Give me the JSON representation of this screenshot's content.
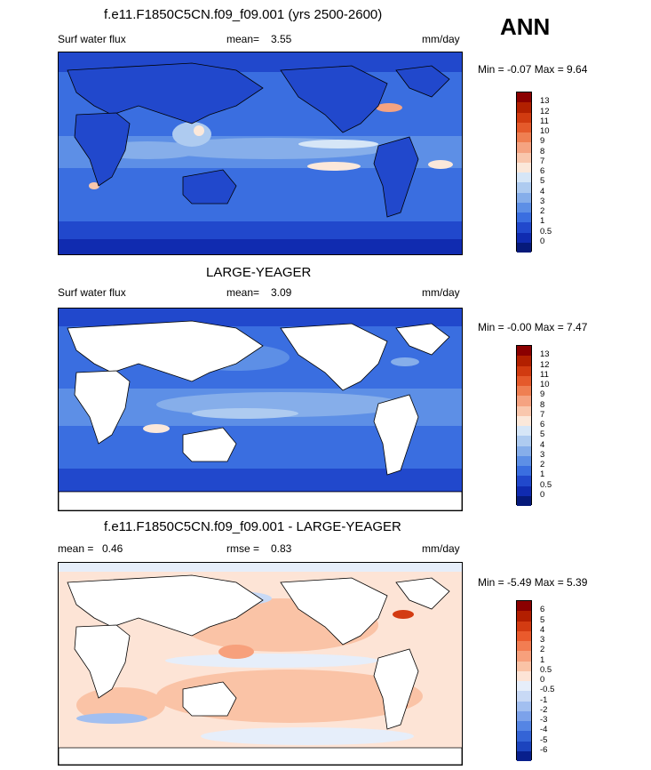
{
  "season": "ANN",
  "panels": [
    {
      "title": "f.e11.F1850C5CN.f09_f09.001 (yrs 2500-2600)",
      "left_label": "Surf water flux",
      "stat_label": "mean=",
      "stat_value": "3.55",
      "units": "mm/day",
      "minmax": "Min = -0.07 Max = 9.64",
      "levels": [
        "13",
        "12",
        "11",
        "10",
        "9",
        "8",
        "7",
        "6",
        "5",
        "4",
        "3",
        "2",
        "1",
        "0.5",
        "0"
      ],
      "colors": [
        "#8b0000",
        "#b22000",
        "#d13b10",
        "#e55a2b",
        "#ef7f52",
        "#f5a381",
        "#f9c7ad",
        "#fbe8da",
        "#d6e6f7",
        "#aecbf0",
        "#86aeea",
        "#5d8fe6",
        "#3a6ee0",
        "#2148cc",
        "#102bb0",
        "#061a7a"
      ]
    },
    {
      "title": "LARGE-YEAGER",
      "left_label": "Surf water flux",
      "stat_label": "mean=",
      "stat_value": "3.09",
      "units": "mm/day",
      "minmax": "Min = -0.00 Max = 7.47",
      "levels": [
        "13",
        "12",
        "11",
        "10",
        "9",
        "8",
        "7",
        "6",
        "5",
        "4",
        "3",
        "2",
        "1",
        "0.5",
        "0"
      ],
      "colors": [
        "#8b0000",
        "#b22000",
        "#d13b10",
        "#e55a2b",
        "#ef7f52",
        "#f5a381",
        "#f9c7ad",
        "#fbe8da",
        "#d6e6f7",
        "#aecbf0",
        "#86aeea",
        "#5d8fe6",
        "#3a6ee0",
        "#2148cc",
        "#102bb0",
        "#061a7a"
      ]
    },
    {
      "title": "f.e11.F1850C5CN.f09_f09.001 - LARGE-YEAGER",
      "left_label": "mean =",
      "left_value": "0.46",
      "stat_label": "rmse =",
      "stat_value": "0.83",
      "units": "mm/day",
      "minmax": "Min = -5.49 Max = 5.39",
      "levels": [
        "6",
        "5",
        "4",
        "3",
        "2",
        "1",
        "0.5",
        "0",
        "-0.5",
        "-1",
        "-2",
        "-3",
        "-4",
        "-5",
        "-6"
      ],
      "colors": [
        "#8b0000",
        "#b21e00",
        "#d33b12",
        "#ea5a2c",
        "#f27d52",
        "#f7a07c",
        "#fac3a6",
        "#fde4d6",
        "#e6eefa",
        "#c8d9f5",
        "#a2bff0",
        "#7ca2ea",
        "#5585e4",
        "#3464d6",
        "#1c44be",
        "#081f8c"
      ]
    }
  ]
}
